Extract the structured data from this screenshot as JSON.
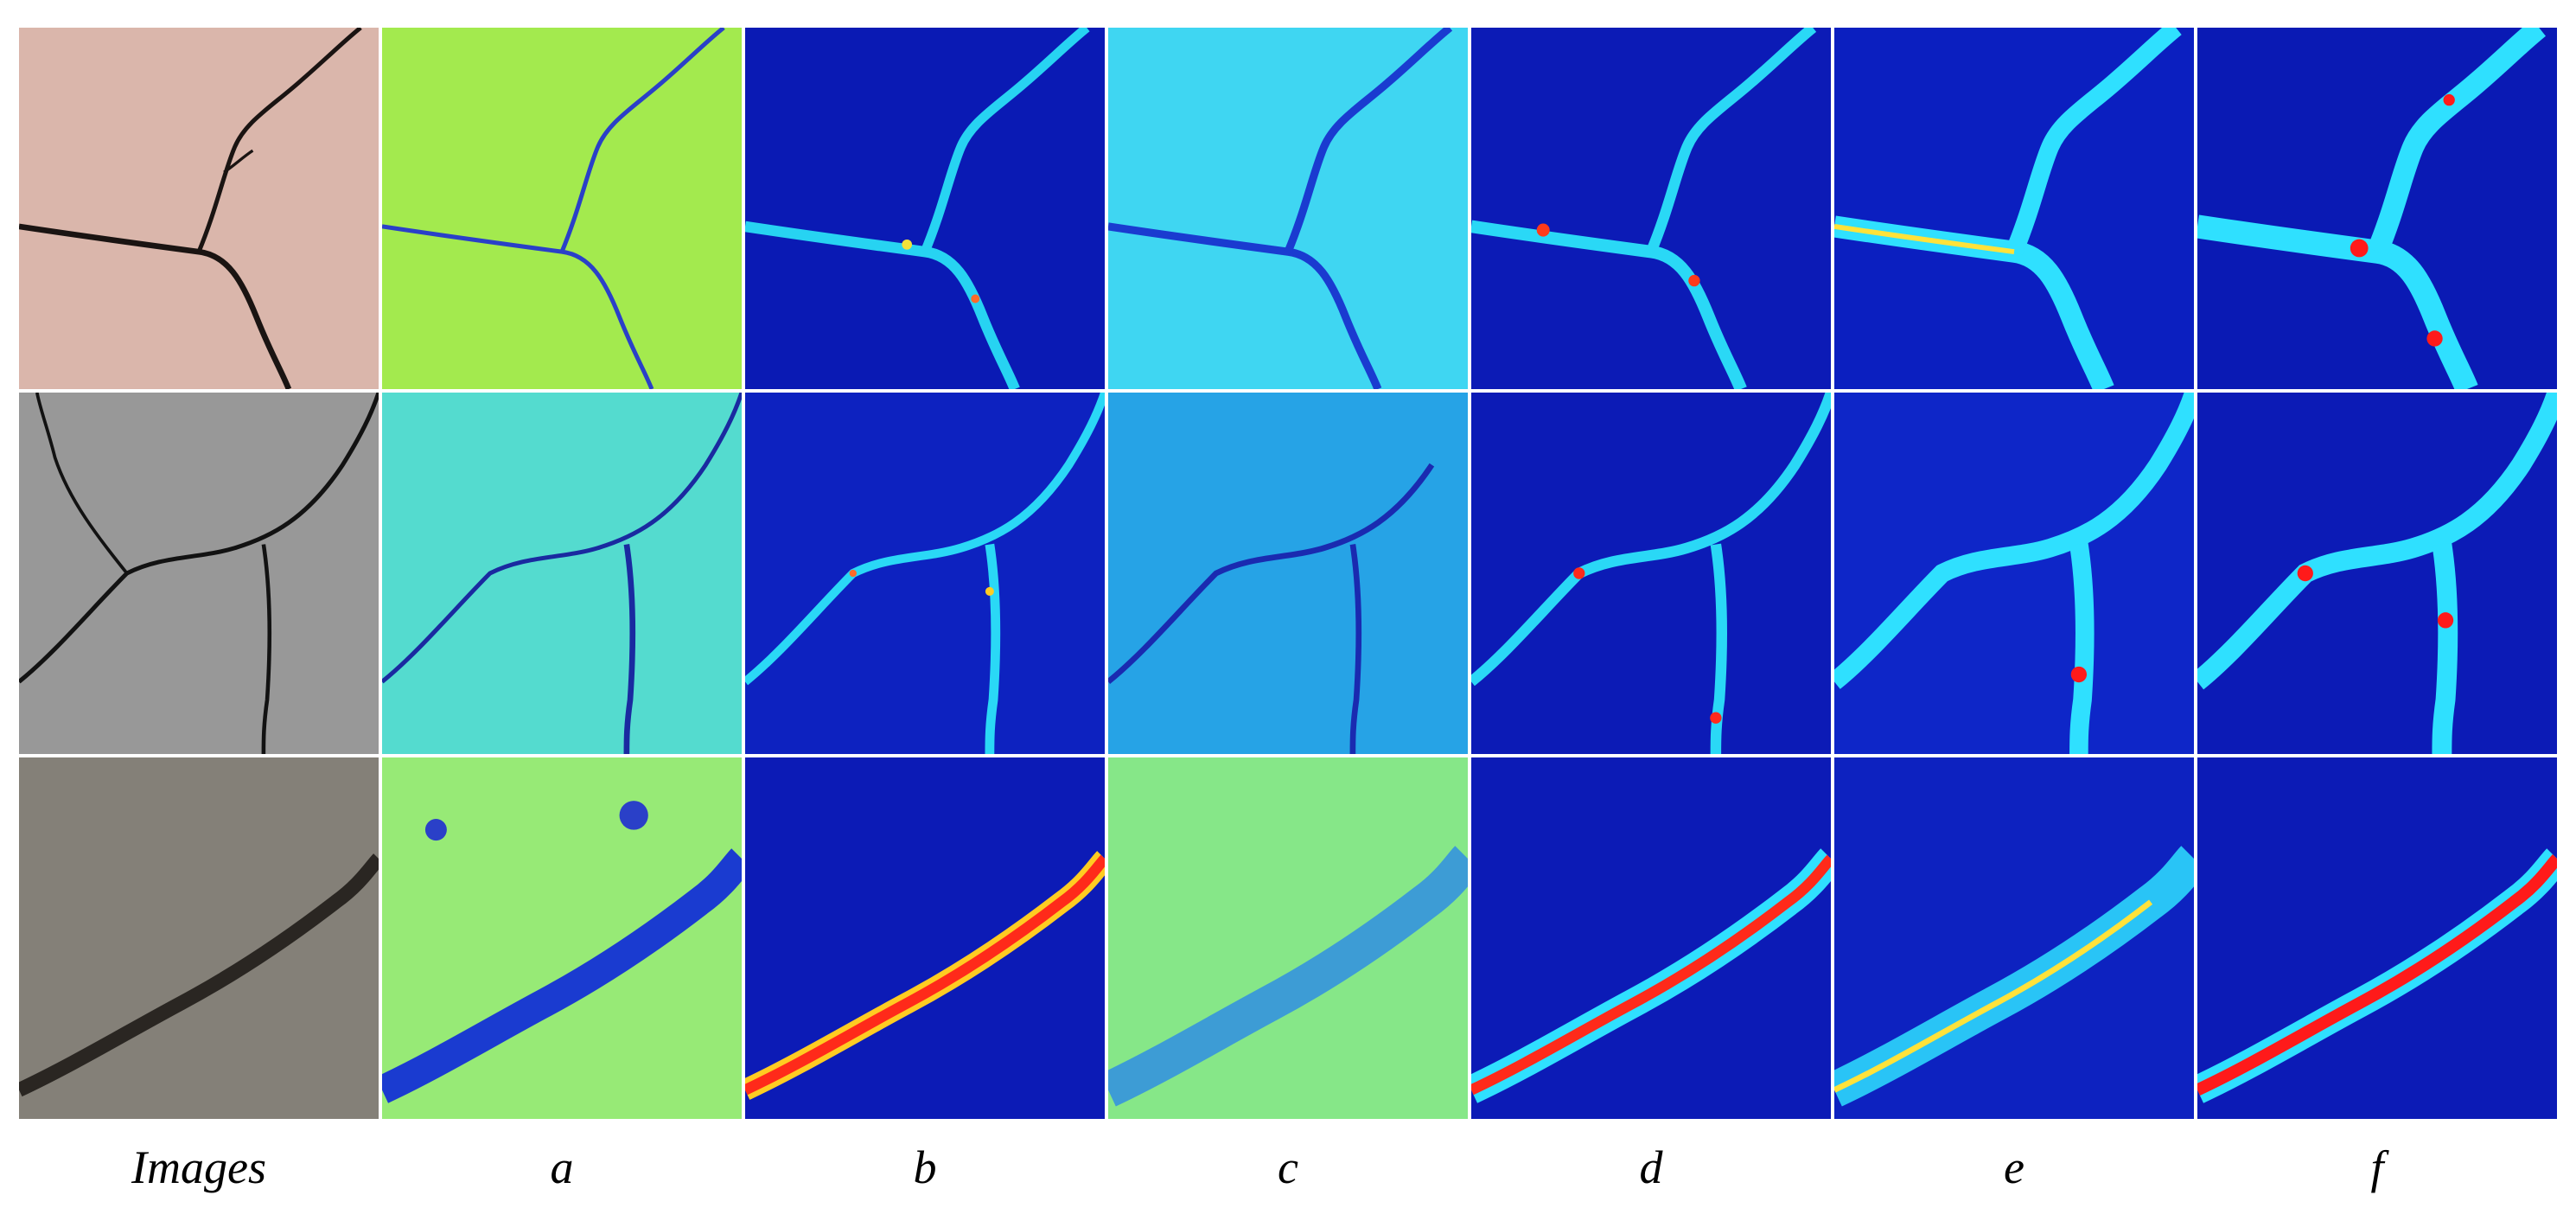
{
  "column_labels": [
    "Images",
    "a",
    "b",
    "c",
    "d",
    "e",
    "f"
  ],
  "colors": {
    "background": "#ffffff",
    "jet_low": "#0a1fb0",
    "jet_mid": "#2fd6f0",
    "jet_high": "#e01010",
    "label_text": "#000000"
  },
  "rows": [
    {
      "name": "row-1",
      "image_bg": "#d7b2a7",
      "crack_color": "#1a1412"
    },
    {
      "name": "row-2",
      "image_bg": "#8f8f8f",
      "crack_color": "#121212"
    },
    {
      "name": "row-3",
      "image_bg": "#7a756c",
      "crack_color": "#2a2622"
    }
  ]
}
